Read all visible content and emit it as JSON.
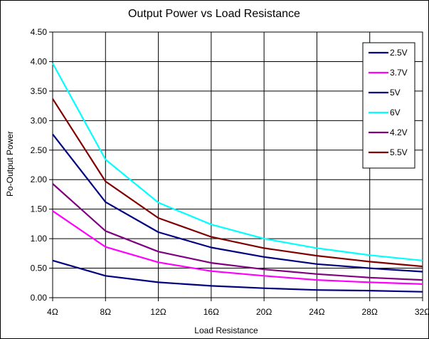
{
  "chart_data": {
    "type": "line",
    "title": "Output Power vs Load Resistance",
    "xlabel": "Load Resistance",
    "ylabel": "Po-Output Power",
    "categories": [
      "4Ω",
      "8Ω",
      "12Ω",
      "16Ω",
      "20Ω",
      "24Ω",
      "28Ω",
      "32Ω"
    ],
    "x": [
      4,
      8,
      12,
      16,
      20,
      24,
      28,
      32
    ],
    "xlim": [
      4,
      32
    ],
    "ylim": [
      0,
      4.5
    ],
    "yticks": [
      "0.00",
      "0.50",
      "1.00",
      "1.50",
      "2.00",
      "2.50",
      "3.00",
      "3.50",
      "4.00",
      "4.50"
    ],
    "grid": true,
    "legend_position": "top-right",
    "series": [
      {
        "name": "2.5V",
        "color": "#000080",
        "values": [
          0.63,
          0.37,
          0.26,
          0.2,
          0.16,
          0.13,
          0.12,
          0.1
        ]
      },
      {
        "name": "3.7V",
        "color": "#ff00ff",
        "values": [
          1.47,
          0.86,
          0.6,
          0.45,
          0.37,
          0.3,
          0.26,
          0.23
        ]
      },
      {
        "name": "5V",
        "color": "#000080",
        "values": [
          2.77,
          1.62,
          1.11,
          0.85,
          0.69,
          0.57,
          0.5,
          0.44
        ]
      },
      {
        "name": "6V",
        "color": "#00ffff",
        "values": [
          3.97,
          2.34,
          1.61,
          1.24,
          1.0,
          0.84,
          0.72,
          0.63
        ]
      },
      {
        "name": "4.2V",
        "color": "#800080",
        "values": [
          1.93,
          1.13,
          0.78,
          0.59,
          0.48,
          0.4,
          0.34,
          0.3
        ]
      },
      {
        "name": "5.5V",
        "color": "#800000",
        "values": [
          3.37,
          1.97,
          1.35,
          1.03,
          0.84,
          0.71,
          0.61,
          0.53
        ]
      }
    ]
  }
}
